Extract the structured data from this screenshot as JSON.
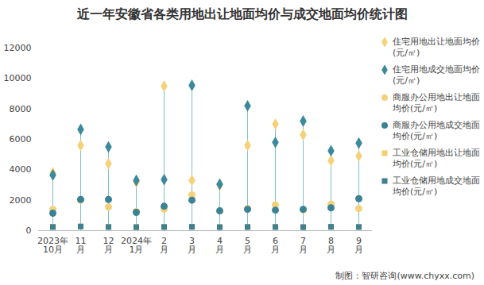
{
  "chart_data": {
    "type": "scatter",
    "title": "近一年安徽省各类用地出让地面均价与成交地面均价统计图",
    "source": "制图：智研咨询(www.chyxx.com)",
    "categories": [
      "2023年\n10月",
      "11\n月",
      "12\n月",
      "2024年\n1月",
      "2\n月",
      "3\n月",
      "4\n月",
      "5\n月",
      "6\n月",
      "7\n月",
      "8\n月",
      "9\n月"
    ],
    "series": [
      {
        "name": "住宅用地出让地面均价(元/㎡)",
        "color": "#f5d27a",
        "marker": "diamond",
        "values": [
          3800,
          5600,
          4400,
          3200,
          9500,
          3300,
          3000,
          5600,
          7000,
          6300,
          4600,
          4900
        ]
      },
      {
        "name": "住宅用地成交地面均价(元/㎡)",
        "color": "#3a8a9c",
        "marker": "diamond",
        "values": [
          3650,
          6650,
          5500,
          3300,
          3350,
          9550,
          3050,
          8200,
          5800,
          7200,
          5250,
          5750
        ]
      },
      {
        "name": "商服办公用地出让地面均价(元/㎡)",
        "color": "#f5d27a",
        "marker": "circle",
        "values": [
          1400,
          2000,
          1550,
          1250,
          1400,
          2350,
          1300,
          1450,
          1700,
          1350,
          1750,
          1450
        ]
      },
      {
        "name": "商服办公用地成交地面均价(元/㎡)",
        "color": "#3a8295",
        "marker": "circle",
        "values": [
          1150,
          2050,
          2050,
          1200,
          1600,
          2000,
          1300,
          1400,
          1350,
          1400,
          1500,
          2100
        ]
      },
      {
        "name": "工业仓储用地出让地面均价(元/㎡)",
        "color": "#f3cf6f",
        "marker": "square",
        "values": [
          260,
          280,
          250,
          240,
          250,
          260,
          240,
          250,
          250,
          240,
          260,
          250
        ]
      },
      {
        "name": "工业仓储用地成交地面均价(元/㎡)",
        "color": "#3f7f8f",
        "marker": "square",
        "values": [
          240,
          270,
          240,
          230,
          240,
          250,
          230,
          240,
          240,
          230,
          250,
          240
        ]
      }
    ],
    "ylim": [
      0,
      12000
    ],
    "yticks": [
      0,
      2000,
      4000,
      6000,
      8000,
      10000,
      12000
    ],
    "grid": false,
    "legend": "right"
  }
}
